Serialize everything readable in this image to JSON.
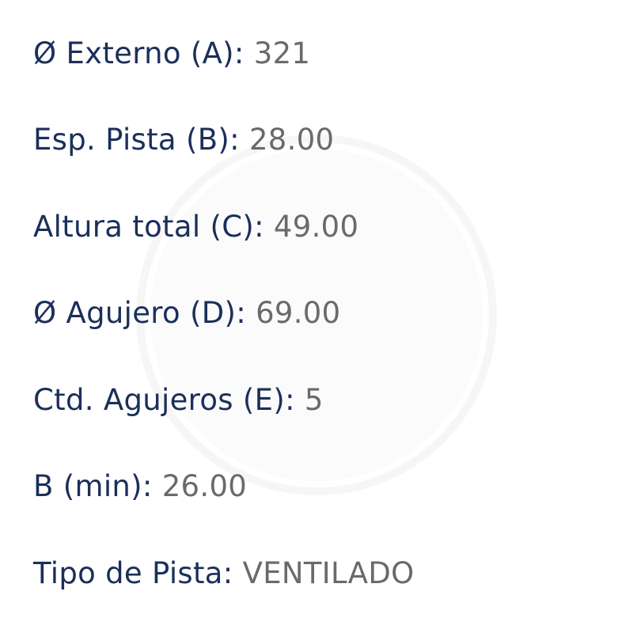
{
  "specs": [
    {
      "label": "Ø Externo (A):",
      "value": "321"
    },
    {
      "label": "Esp. Pista (B):",
      "value": "28.00"
    },
    {
      "label": "Altura total (C):",
      "value": "49.00"
    },
    {
      "label": "Ø Agujero (D):",
      "value": "69.00"
    },
    {
      "label": "Ctd. Agujeros (E):",
      "value": "5"
    },
    {
      "label": "B (min):",
      "value": "26.00"
    },
    {
      "label": "Tipo de Pista:",
      "value": "VENTILADO"
    }
  ],
  "colors": {
    "label": "#1b2f5a",
    "value": "#6a6a6a"
  }
}
